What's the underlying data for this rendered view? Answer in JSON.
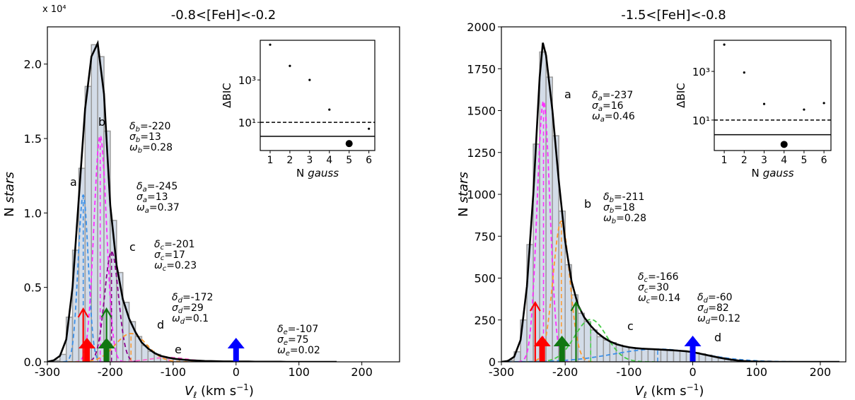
{
  "chart_data": [
    {
      "type": "histogram",
      "title": "-0.8<[FeH]<-0.2",
      "offset_label": "x 10⁴",
      "ylabel": [
        "N",
        "stars"
      ],
      "xlabel": [
        "V",
        "ℓ",
        " (km s",
        "−1",
        ")"
      ],
      "xlim": [
        -300,
        260
      ],
      "ylim": [
        0,
        2.25
      ],
      "xticks": [
        -300,
        -200,
        -100,
        0,
        100,
        200
      ],
      "yticks": [
        {
          "value": 0,
          "label": "0.0"
        },
        {
          "value": 0.5,
          "label": "0.5"
        },
        {
          "value": 1,
          "label": "1.0"
        },
        {
          "value": 1.5,
          "label": "1.5"
        },
        {
          "value": 2,
          "label": "2.0"
        }
      ],
      "color": "#d3dce8",
      "edge_color": "#9a9a9a",
      "bins": [
        -290,
        -280,
        -270,
        -260,
        -250,
        -240,
        -230,
        -220,
        -210,
        -200,
        -190,
        -180,
        -170,
        -160,
        -150,
        -140,
        -130,
        -120,
        -110,
        -100,
        -90,
        -80,
        -70,
        -60,
        -50,
        -40,
        -30,
        -20,
        -10,
        0,
        10
      ],
      "counts": [
        0.01,
        0.05,
        0.3,
        0.75,
        1.3,
        1.85,
        2.13,
        2.05,
        1.55,
        0.95,
        0.6,
        0.4,
        0.27,
        0.17,
        0.11,
        0.07,
        0.05,
        0.035,
        0.025,
        0.02,
        0.015,
        0.012,
        0.01,
        0.008,
        0.006,
        0.005,
        0.004,
        0.003,
        0.003,
        0.002
      ],
      "fit": {
        "color": "#000000",
        "x": [
          -300,
          -290,
          -280,
          -270,
          -260,
          -250,
          -240,
          -230,
          -220,
          -210,
          -200,
          -190,
          -180,
          -170,
          -160,
          -150,
          -140,
          -130,
          -120,
          -110,
          -100,
          -90,
          -80,
          -70,
          -60,
          -50,
          -40,
          -30,
          -20,
          -10,
          0,
          10,
          20,
          30,
          40,
          50,
          60,
          70,
          80,
          90,
          100,
          110,
          120,
          130,
          140,
          150,
          160
        ],
        "values": [
          0,
          0.01,
          0.04,
          0.15,
          0.5,
          1.1,
          1.7,
          2.05,
          2.14,
          1.8,
          1.05,
          0.65,
          0.42,
          0.29,
          0.2,
          0.13,
          0.09,
          0.06,
          0.04,
          0.03,
          0.022,
          0.017,
          0.013,
          0.01,
          0.008,
          0.006,
          0.005,
          0.004,
          0.003,
          0.003,
          0.002,
          0.002,
          0.002,
          0.001,
          0.001,
          0.001,
          0.001,
          0.001,
          0,
          0,
          0,
          0,
          0,
          0,
          0,
          0,
          0
        ]
      },
      "components": [
        {
          "letter": "a",
          "color": "#3a8fe8",
          "mean": -243,
          "sigma": 8,
          "peak": 1.12,
          "params": [
            [
              "δ",
              "a",
              "=-245"
            ],
            [
              "σ",
              "a",
              "=13"
            ],
            [
              "ω",
              "a",
              "=0.37"
            ]
          ]
        },
        {
          "letter": "b",
          "color": "#ff2bff",
          "mean": -216,
          "sigma": 10,
          "peak": 1.52,
          "params": [
            [
              "δ",
              "b",
              "=-220"
            ],
            [
              "σ",
              "b",
              "=13"
            ],
            [
              "ω",
              "b",
              "=0.28"
            ]
          ]
        },
        {
          "letter": "c",
          "color": "#8b008b",
          "mean": -198,
          "sigma": 11,
          "peak": 0.74,
          "params": [
            [
              "δ",
              "c",
              "=-201"
            ],
            [
              "σ",
              "c",
              "=17"
            ],
            [
              "ω",
              "c",
              "=0.23"
            ]
          ]
        },
        {
          "letter": "d",
          "color": "#ff9a2e",
          "mean": -167,
          "sigma": 25,
          "peak": 0.19,
          "params": [
            [
              "δ",
              "d",
              "=-172"
            ],
            [
              "σ",
              "d",
              "=29"
            ],
            [
              "ω",
              "d",
              "=0.1"
            ]
          ]
        },
        {
          "letter": "e",
          "color": "#ff66cc",
          "mean": -107,
          "sigma": 30,
          "peak": 0.03,
          "params": [
            [
              "δ",
              "e",
              "=-107"
            ],
            [
              "σ",
              "e",
              "=75"
            ],
            [
              "ω",
              "e",
              "=0.02"
            ]
          ]
        }
      ],
      "arrows": [
        {
          "x": -243,
          "color": "#ff0000",
          "style": "open"
        },
        {
          "x": -237,
          "color": "#ff0000",
          "style": "filled"
        },
        {
          "x": -206,
          "color": "#117711",
          "style": "open"
        },
        {
          "x": -206,
          "color": "#117711",
          "style": "filled"
        },
        {
          "x": 0,
          "color": "#0000ff",
          "style": "filled"
        }
      ]
    },
    {
      "type": "scatter",
      "ylabel": "ΔBIC",
      "xlabel": [
        "N",
        "gauss"
      ],
      "log_y": true,
      "xlim": [
        0.5,
        6.3
      ],
      "ylim": [
        0.47,
        74000
      ],
      "xticks": [
        1,
        2,
        3,
        4,
        5,
        6
      ],
      "yticks": [
        {
          "value": 10,
          "label": "10¹"
        },
        {
          "value": 1000,
          "label": "10³"
        }
      ],
      "x": [
        1,
        2,
        3,
        4,
        5,
        6
      ],
      "values": [
        46000,
        4600,
        1000,
        40,
        1,
        5
      ],
      "best_n": 5,
      "color": "#000000",
      "hlines": [
        {
          "y": 10,
          "style": "dashed"
        },
        {
          "y": 2.2,
          "style": "solid"
        }
      ]
    },
    {
      "type": "histogram",
      "title": "-1.5<[FeH]<-0.8",
      "ylabel": [
        "N",
        "stars"
      ],
      "xlabel": [
        "V",
        "ℓ",
        " (km s",
        "−1",
        ")"
      ],
      "xlim": [
        -300,
        240
      ],
      "ylim": [
        0,
        2000
      ],
      "xticks": [
        -300,
        -200,
        -100,
        0,
        100,
        200
      ],
      "yticks": [
        0,
        250,
        500,
        750,
        1000,
        1250,
        1500,
        1750,
        2000
      ],
      "color": "#d3dce8",
      "edge_color": "#9a9a9a",
      "bins": [
        -290,
        -280,
        -270,
        -260,
        -250,
        -240,
        -230,
        -220,
        -210,
        -200,
        -190,
        -180,
        -170,
        -160,
        -150,
        -140,
        -130,
        -120,
        -110,
        -100,
        -90,
        -80,
        -70,
        -60,
        -50,
        -40,
        -30,
        -20,
        -10,
        0,
        10,
        20,
        30,
        40,
        50,
        60,
        70
      ],
      "counts": [
        10,
        60,
        250,
        700,
        1300,
        1850,
        1700,
        1350,
        900,
        580,
        400,
        290,
        240,
        190,
        150,
        130,
        115,
        100,
        90,
        85,
        80,
        78,
        76,
        75,
        73,
        70,
        68,
        65,
        62,
        55,
        48,
        40,
        32,
        25,
        18,
        12
      ],
      "fit": {
        "color": "#000000",
        "x": [
          -300,
          -290,
          -280,
          -270,
          -260,
          -250,
          -240,
          -235,
          -230,
          -220,
          -210,
          -200,
          -190,
          -180,
          -170,
          -160,
          -150,
          -140,
          -130,
          -120,
          -110,
          -100,
          -90,
          -80,
          -70,
          -60,
          -50,
          -40,
          -30,
          -20,
          -10,
          0,
          10,
          20,
          30,
          40,
          50,
          60,
          70,
          80,
          90,
          100,
          110,
          120,
          130,
          140,
          150,
          160,
          170,
          180,
          190,
          200,
          210,
          220,
          230
        ],
        "values": [
          0,
          5,
          30,
          130,
          450,
          1000,
          1700,
          1905,
          1830,
          1500,
          1080,
          720,
          480,
          340,
          265,
          215,
          175,
          145,
          122,
          106,
          95,
          87,
          82,
          79,
          77,
          75,
          73,
          71,
          69,
          66,
          63,
          58,
          50,
          42,
          34,
          26,
          19,
          13,
          8,
          5,
          3,
          2,
          1,
          1,
          0,
          0,
          0,
          0,
          0,
          0,
          0,
          0,
          0,
          0,
          0
        ]
      },
      "components": [
        {
          "letter": "a",
          "color": "#ff2bff",
          "mean": -234,
          "sigma": 10,
          "peak": 1557,
          "params": [
            [
              "δ",
              "a",
              "=-237"
            ],
            [
              "σ",
              "a",
              "=16"
            ],
            [
              "ω",
              "a",
              "=0.46"
            ]
          ]
        },
        {
          "letter": "b",
          "color": "#ff9a2e",
          "mean": -206,
          "sigma": 13,
          "peak": 840,
          "params": [
            [
              "δ",
              "b",
              "=-211"
            ],
            [
              "σ",
              "b",
              "=18"
            ],
            [
              "ω",
              "b",
              "=0.28"
            ]
          ]
        },
        {
          "letter": "c",
          "color": "#44cc44",
          "mean": -160,
          "sigma": 25,
          "peak": 253,
          "params": [
            [
              "δ",
              "c",
              "=-166"
            ],
            [
              "σ",
              "c",
              "=30"
            ],
            [
              "ω",
              "c",
              "=0.14"
            ]
          ]
        },
        {
          "letter": "d",
          "color": "#3a8fe8",
          "mean": -55,
          "sigma": 70,
          "peak": 76,
          "params": [
            [
              "δ",
              "d",
              "=-60"
            ],
            [
              "σ",
              "d",
              "=82"
            ],
            [
              "ω",
              "d",
              "=0.12"
            ]
          ]
        }
      ],
      "arrows": [
        {
          "x": -247,
          "color": "#ff0000",
          "style": "open"
        },
        {
          "x": -236,
          "color": "#ff0000",
          "style": "filled"
        },
        {
          "x": -205,
          "color": "#117711",
          "style": "filled"
        },
        {
          "x": -183,
          "color": "#117711",
          "style": "open"
        },
        {
          "x": 0,
          "color": "#0000ff",
          "style": "filled"
        }
      ]
    },
    {
      "type": "scatter",
      "ylabel": "ΔBIC",
      "xlabel": [
        "N",
        "gauss"
      ],
      "log_y": true,
      "xlim": [
        0.5,
        6.35
      ],
      "ylim": [
        0.56,
        19000
      ],
      "xticks": [
        1,
        2,
        3,
        4,
        5,
        6
      ],
      "yticks": [
        {
          "value": 10,
          "label": "10¹"
        },
        {
          "value": 1000,
          "label": "10³"
        }
      ],
      "x": [
        1,
        2,
        3,
        4,
        5,
        6
      ],
      "values": [
        12600,
        900,
        46,
        1,
        27,
        50
      ],
      "best_n": 4,
      "color": "#000000",
      "hlines": [
        {
          "y": 10,
          "style": "dashed"
        },
        {
          "y": 2.5,
          "style": "solid"
        }
      ]
    }
  ]
}
